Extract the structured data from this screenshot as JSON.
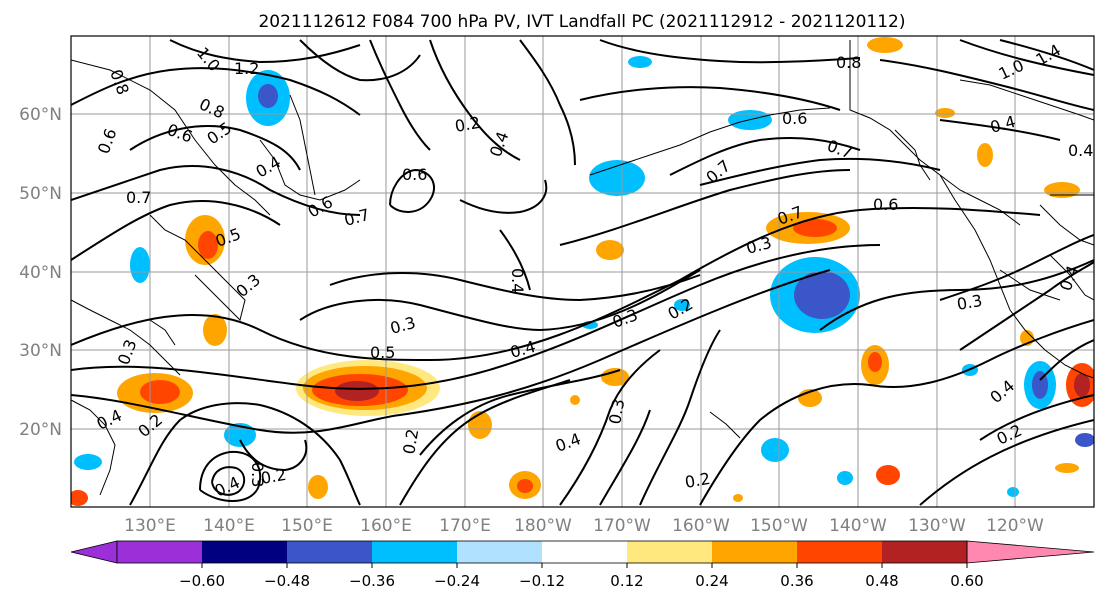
{
  "title": "2021112612 F084 700 hPa PV, IVT Landfall PC (2021112912 - 2021120112)",
  "map": {
    "lat_labels": [
      "60°N",
      "50°N",
      "40°N",
      "30°N",
      "20°N"
    ],
    "lon_labels": [
      "130°E",
      "140°E",
      "150°E",
      "160°E",
      "170°E",
      "180°W",
      "170°W",
      "160°W",
      "150°W",
      "140°W",
      "130°W",
      "120°W"
    ],
    "contour_labels": [
      "0.8",
      "1.0",
      "1.2",
      "0.8",
      "0.6",
      "0.6",
      "0.5",
      "0.4",
      "0.7",
      "0.6",
      "0.7",
      "0.5",
      "0.3",
      "0.6",
      "0.2",
      "0.4",
      "0.8",
      "0.6",
      "0.7",
      "0.7",
      "0.6",
      "0.7",
      "0.3",
      "0.4",
      "0.3",
      "0.5",
      "0.4",
      "0.3",
      "0.2",
      "0.4",
      "0.2",
      "0.2",
      "0.3",
      "0.4",
      "0.2",
      "0.4",
      "0.3",
      "0.2",
      "0.3",
      "0.4",
      "0.2",
      "0.4",
      "1.4",
      "1.0",
      "0.4",
      "0.3",
      "0.4"
    ],
    "colors": {
      "coast": "#000000",
      "contour": "#000000",
      "grid": "#9a9a9a",
      "axis_label": "#808080"
    }
  },
  "colorbar": {
    "ticks": [
      "−0.60",
      "−0.48",
      "−0.36",
      "−0.24",
      "−0.12",
      "0.12",
      "0.24",
      "0.36",
      "0.48",
      "0.60"
    ],
    "colors": [
      "#9b30d9",
      "#000080",
      "#3a56c8",
      "#00bfff",
      "#b0e2ff",
      "#ffffff",
      "#ffe97f",
      "#ffa500",
      "#ff4500",
      "#b22222",
      "#ff88b0"
    ]
  }
}
